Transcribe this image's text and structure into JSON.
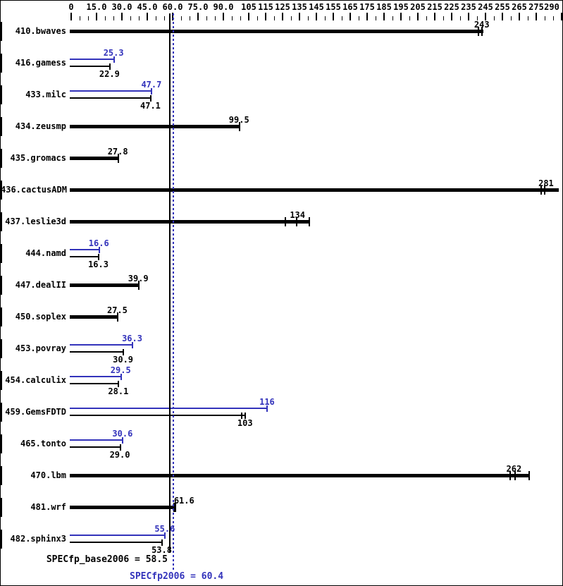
{
  "colors": {
    "base": "#000000",
    "peak": "#3333bb",
    "background": "#ffffff",
    "border": "#000000"
  },
  "chart_data": {
    "type": "bar",
    "orientation": "horizontal",
    "xlim": [
      0,
      290
    ],
    "grid": false,
    "axis": {
      "minor_step": 5,
      "major_labels": [
        {
          "value": 0,
          "label": "0"
        },
        {
          "value": 15,
          "label": "15.0"
        },
        {
          "value": 30,
          "label": "30.0"
        },
        {
          "value": 45,
          "label": "45.0"
        },
        {
          "value": 60,
          "label": "60.0"
        },
        {
          "value": 75,
          "label": "75.0"
        },
        {
          "value": 90,
          "label": "90.0"
        },
        {
          "value": 105,
          "label": "105"
        },
        {
          "value": 115,
          "label": "115"
        },
        {
          "value": 125,
          "label": "125"
        },
        {
          "value": 135,
          "label": "135"
        },
        {
          "value": 145,
          "label": "145"
        },
        {
          "value": 155,
          "label": "155"
        },
        {
          "value": 165,
          "label": "165"
        },
        {
          "value": 175,
          "label": "175"
        },
        {
          "value": 185,
          "label": "185"
        },
        {
          "value": 195,
          "label": "195"
        },
        {
          "value": 205,
          "label": "205"
        },
        {
          "value": 215,
          "label": "215"
        },
        {
          "value": 225,
          "label": "225"
        },
        {
          "value": 235,
          "label": "235"
        },
        {
          "value": 245,
          "label": "245"
        },
        {
          "value": 255,
          "label": "255"
        },
        {
          "value": 265,
          "label": "265"
        },
        {
          "value": 275,
          "label": "275"
        },
        {
          "value": 290,
          "label": "290"
        }
      ]
    },
    "benchmarks": [
      {
        "name": "410.bwaves",
        "base": {
          "value": 243,
          "display": "243",
          "marks": [
            241,
            243
          ],
          "end": 243.5
        },
        "peak": null
      },
      {
        "name": "416.gamess",
        "base": {
          "value": 22.9,
          "display": "22.9",
          "marks": [
            22.9
          ],
          "end": 22.9
        },
        "peak": {
          "value": 25.3,
          "display": "25.3",
          "marks": [
            25.3
          ],
          "end": 25.3
        }
      },
      {
        "name": "433.milc",
        "base": {
          "value": 47.1,
          "display": "47.1",
          "marks": [
            47.1
          ],
          "end": 47.1
        },
        "peak": {
          "value": 47.7,
          "display": "47.7",
          "marks": [
            47.7
          ],
          "end": 47.7
        }
      },
      {
        "name": "434.zeusmp",
        "base": {
          "value": 99.5,
          "display": "99.5",
          "marks": [
            99.5
          ],
          "end": 99.5
        },
        "peak": null
      },
      {
        "name": "435.gromacs",
        "base": {
          "value": 27.8,
          "display": "27.8",
          "marks": [
            27.8
          ],
          "end": 27.8
        },
        "peak": null
      },
      {
        "name": "436.cactusADM",
        "base": {
          "value": 281,
          "display": "281",
          "marks": [
            278,
            280
          ],
          "end": 288
        },
        "peak": null
      },
      {
        "name": "437.leslie3d",
        "base": {
          "value": 134,
          "display": "134",
          "marks": [
            126.5,
            133.5,
            141
          ],
          "end": 141
        },
        "peak": null
      },
      {
        "name": "444.namd",
        "base": {
          "value": 16.3,
          "display": "16.3",
          "marks": [
            16.3
          ],
          "end": 16.3
        },
        "peak": {
          "value": 16.6,
          "display": "16.6",
          "marks": [
            16.6
          ],
          "end": 16.6
        }
      },
      {
        "name": "447.dealII",
        "base": {
          "value": 39.9,
          "display": "39.9",
          "marks": [
            39.9
          ],
          "end": 39.9
        },
        "peak": null
      },
      {
        "name": "450.soplex",
        "base": {
          "value": 27.5,
          "display": "27.5",
          "marks": [
            27.5
          ],
          "end": 27.5
        },
        "peak": null
      },
      {
        "name": "453.povray",
        "base": {
          "value": 30.9,
          "display": "30.9",
          "marks": [
            30.9
          ],
          "end": 30.9
        },
        "peak": {
          "value": 36.3,
          "display": "36.3",
          "marks": [
            36.3
          ],
          "end": 36.3
        }
      },
      {
        "name": "454.calculix",
        "base": {
          "value": 28.1,
          "display": "28.1",
          "marks": [
            28.1
          ],
          "end": 28.1
        },
        "peak": {
          "value": 29.5,
          "display": "29.5",
          "marks": [
            29.5
          ],
          "end": 29.5
        }
      },
      {
        "name": "459.GemsFDTD",
        "base": {
          "value": 103,
          "display": "103",
          "marks": [
            101,
            103
          ],
          "end": 103
        },
        "peak": {
          "value": 116,
          "display": "116",
          "marks": [
            116
          ],
          "end": 116
        }
      },
      {
        "name": "465.tonto",
        "base": {
          "value": 29.0,
          "display": "29.0",
          "marks": [
            29.0
          ],
          "end": 29.0
        },
        "peak": {
          "value": 30.6,
          "display": "30.6",
          "marks": [
            30.6
          ],
          "end": 30.6
        }
      },
      {
        "name": "470.lbm",
        "base": {
          "value": 262,
          "display": "262",
          "marks": [
            259.5,
            262.5,
            271
          ],
          "end": 271
        },
        "peak": null
      },
      {
        "name": "481.wrf",
        "base": {
          "value": 61.6,
          "display": "61.6",
          "marks": [
            61,
            61.6
          ],
          "end": 61.6,
          "label_pos": "right"
        },
        "peak": null
      },
      {
        "name": "482.sphinx3",
        "base": {
          "value": 53.8,
          "display": "53.8",
          "marks": [
            53.8
          ],
          "end": 53.8
        },
        "peak": {
          "value": 55.6,
          "display": "55.6",
          "marks": [
            55.6
          ],
          "end": 55.6
        }
      }
    ],
    "summary": {
      "base": {
        "text": "SPECfp_base2006 = 58.5",
        "value": 58.5
      },
      "peak": {
        "text": "SPECfp2006 = 60.4",
        "value": 60.4
      }
    }
  }
}
